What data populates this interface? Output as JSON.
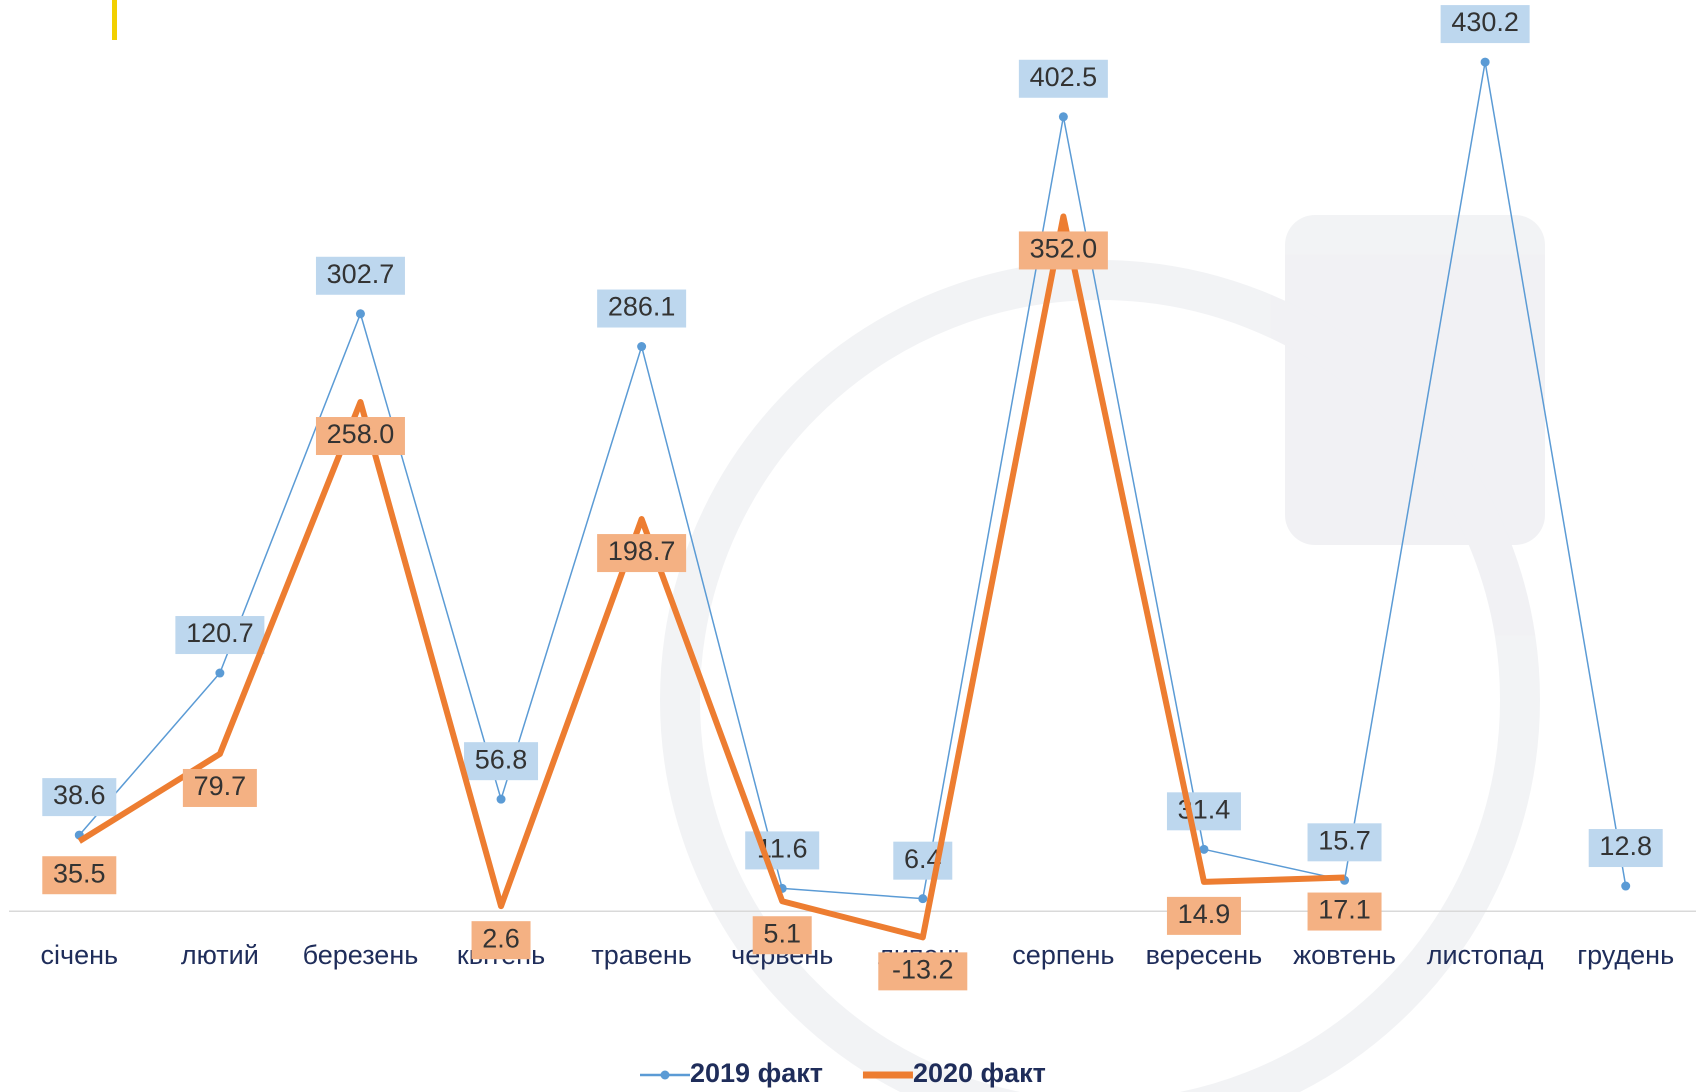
{
  "chart_data": {
    "type": "line",
    "categories": [
      "січень",
      "лютий",
      "березень",
      "квітень",
      "травень",
      "червень",
      "липень",
      "серпень",
      "вересень",
      "жовтень",
      "листопад",
      "грудень"
    ],
    "series": [
      {
        "name": "2019 факт",
        "color": "#5b9bd5",
        "values": [
          38.6,
          120.7,
          302.7,
          56.8,
          286.1,
          11.6,
          6.4,
          402.5,
          31.4,
          15.7,
          430.2,
          12.8
        ]
      },
      {
        "name": "2020 факт",
        "color": "#ed7d31",
        "values": [
          35.5,
          79.7,
          258.0,
          2.6,
          198.7,
          5.1,
          -13.2,
          352.0,
          14.9,
          17.1,
          null,
          null
        ],
        "value_labels": [
          "35.5",
          "79.7",
          "258.0",
          "2.6",
          "198.7",
          "5.1",
          "-13.2",
          "352.0",
          "14.9",
          "17.1",
          null,
          null
        ]
      }
    ],
    "ylim": [
      -50,
      450
    ],
    "legend": "bottom"
  }
}
